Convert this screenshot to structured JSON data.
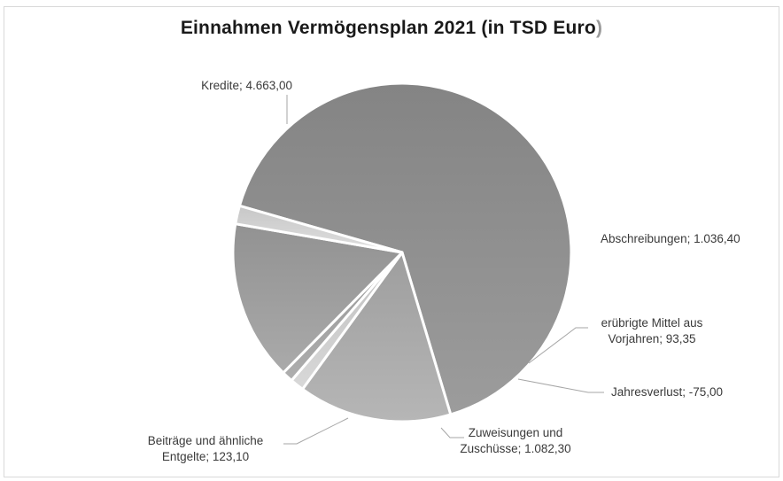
{
  "chart_data": {
    "type": "pie",
    "title": "Einnahmen Vermögensplan 2021 (in TSD Euro)",
    "title_main": "Einnahmen Vermögensplan 2021 (in TSD Euro",
    "title_close": ")",
    "slices": [
      {
        "name": "Kredite",
        "value": 4663.0,
        "label_lines": [
          "Kredite; 4.663,00"
        ]
      },
      {
        "name": "Abschreibungen",
        "value": 1036.4,
        "label_lines": [
          "Abschreibungen; 1.036,40"
        ]
      },
      {
        "name": "erübrigte Mittel aus Vorjahren",
        "value": 93.35,
        "label_lines": [
          "erübrigte Mittel aus",
          "Vorjahren; 93,35"
        ]
      },
      {
        "name": "Jahresverlust",
        "value": -75.0,
        "label_lines": [
          "Jahresverlust; -75,00"
        ]
      },
      {
        "name": "Zuweisungen und Zuschüsse",
        "value": 1082.3,
        "label_lines": [
          "Zuweisungen und",
          "Zuschüsse; 1.082,30"
        ]
      },
      {
        "name": "Beiträge und ähnliche Entgelte",
        "value": 123.1,
        "label_lines": [
          "Beiträge und ähnliche",
          "Entgelte; 123,10"
        ]
      }
    ],
    "colors": [
      "#8c8c8c",
      "#a6a6a6",
      "#c8c8c8",
      "#9e9e9e",
      "#9a9a9a",
      "#cfcfcf"
    ],
    "legend": "none"
  }
}
